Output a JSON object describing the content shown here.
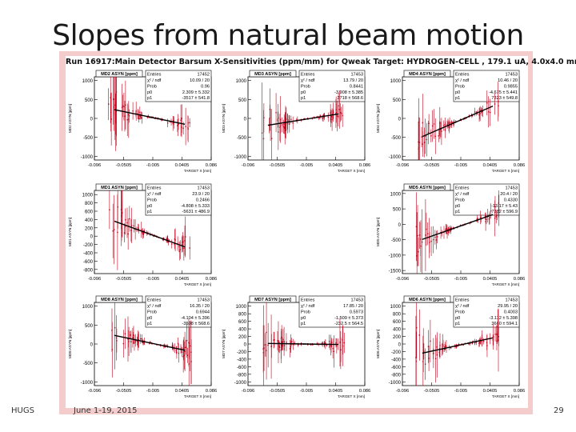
{
  "slide": {
    "title": "Slopes from natural beam motion",
    "footer_left": "HUGS",
    "footer_date": "June 1-19, 2015",
    "page_number": "29"
  },
  "run_title": "Run 16917:Main Detector Barsum X-Sensitivities (ppm/mm) for Qweak Target: HYDROGEN-CELL , 179.1 uA, 4.0x4.0 mm",
  "colors": {
    "frame": "#f4cccc",
    "points": "#c0001a",
    "fit": "#000000",
    "axis": "#000000"
  },
  "chart_data": [
    {
      "type": "scatter",
      "panel": "MD2 ASYN [ppm]",
      "ylabel": "MD2 ASYN [ppm]",
      "xlabel": "TARGET X [mm]",
      "xticks": [
        "-0.096",
        "-0.0505",
        "-0.005",
        "0.0405",
        "0.086"
      ],
      "yticks": [
        "1000",
        "500",
        "0",
        "-500",
        "-1000"
      ],
      "xlim": [
        -0.096,
        0.086
      ],
      "ylim": [
        -1100,
        1100
      ],
      "stats": [
        {
          "k": "Entries",
          "v": "17452"
        },
        {
          "k": "χ² / ndf",
          "v": "10.09 / 20"
        },
        {
          "k": "Prob",
          "v": "0.96"
        },
        {
          "k": "p0",
          "v": "2.309 ± 5.332"
        },
        {
          "k": "p1",
          "v": "-3517 ± 541.8"
        }
      ],
      "fit": {
        "p0": 2.3,
        "p1": -3517
      },
      "seed": 11
    },
    {
      "type": "scatter",
      "panel": "MD3 ASYN [ppm]",
      "ylabel": "MD3 ASYN [ppm]",
      "xlabel": "TARGET X [mm]",
      "xticks": [
        "-0.096",
        "-0.0505",
        "-0.005",
        "0.0405",
        "0.086"
      ],
      "yticks": [
        "1000",
        "500",
        "0",
        "-500",
        "-1000"
      ],
      "xlim": [
        -0.096,
        0.086
      ],
      "ylim": [
        -1100,
        1100
      ],
      "stats": [
        {
          "k": "Entries",
          "v": "17453"
        },
        {
          "k": "χ² / ndf",
          "v": "13.79 / 20"
        },
        {
          "k": "Prob",
          "v": "0.8441"
        },
        {
          "k": "p0",
          "v": "-3.908 ± 5.385"
        },
        {
          "k": "p1",
          "v": "2718 ± 568.6"
        }
      ],
      "fit": {
        "p0": -3.9,
        "p1": 2718
      },
      "seed": 23
    },
    {
      "type": "scatter",
      "panel": "MD4 ASYN [ppm]",
      "ylabel": "MD4 ASYN [ppm]",
      "xlabel": "TARGET X [mm]",
      "xticks": [
        "-0.096",
        "-0.0505",
        "-0.005",
        "0.0405",
        "0.086"
      ],
      "yticks": [
        "1000",
        "500",
        "0",
        "-500",
        "-1000"
      ],
      "xlim": [
        -0.096,
        0.086
      ],
      "ylim": [
        -1100,
        1100
      ],
      "stats": [
        {
          "k": "Entries",
          "v": "17453"
        },
        {
          "k": "χ² / ndf",
          "v": "10.46 / 20"
        },
        {
          "k": "Prob",
          "v": "0.9855"
        },
        {
          "k": "p0",
          "v": "-4.675 ± 5.441"
        },
        {
          "k": "p1",
          "v": "7323 ± 549.8"
        }
      ],
      "fit": {
        "p0": -4.7,
        "p1": 7323
      },
      "seed": 37
    },
    {
      "type": "scatter",
      "panel": "MD1 ASYN [ppm]",
      "ylabel": "MD1 ASYN [ppm]",
      "xlabel": "TARGET X [mm]",
      "xticks": [
        "-0.096",
        "-0.0505",
        "-0.005",
        "0.0405",
        "0.086"
      ],
      "yticks": [
        "1000",
        "800",
        "600",
        "400",
        "200",
        "0",
        "-200",
        "-400",
        "-600",
        "-800"
      ],
      "xlim": [
        -0.096,
        0.086
      ],
      "ylim": [
        -900,
        1100
      ],
      "stats": [
        {
          "k": "Entries",
          "v": "17453"
        },
        {
          "k": "χ² / ndf",
          "v": "23.9 / 20"
        },
        {
          "k": "Prob",
          "v": "0.2466"
        },
        {
          "k": "p0",
          "v": "-4.808 ± 5.333"
        },
        {
          "k": "p1",
          "v": "-5631 ± 486.9"
        }
      ],
      "fit": {
        "p0": -4.8,
        "p1": -5631
      },
      "seed": 41
    },
    {
      "type": "scatter",
      "panel": "MD5 ASYN [ppm]",
      "ylabel": "MD5 ASYN [ppm]",
      "xlabel": "TARGET X [mm]",
      "xticks": [
        "-0.096",
        "-0.0505",
        "-0.005",
        "0.0405",
        "0.086"
      ],
      "yticks": [
        "1000",
        "500",
        "0",
        "-500",
        "-1000",
        "-1500"
      ],
      "xlim": [
        -0.096,
        0.086
      ],
      "ylim": [
        -1600,
        1100
      ],
      "stats": [
        {
          "k": "Entries",
          "v": "17453"
        },
        {
          "k": "χ² / ndf",
          "v": "20.4 / 20"
        },
        {
          "k": "Prob",
          "v": "0.4330"
        },
        {
          "k": "p0",
          "v": "-13.17 ± 5.43"
        },
        {
          "k": "p1",
          "v": "7332 ± 596.9"
        }
      ],
      "fit": {
        "p0": -13.2,
        "p1": 7332
      },
      "seed": 53
    },
    {
      "type": "scatter",
      "panel": "MD8 ASYN [ppm]",
      "ylabel": "MD8 ASYN [ppm]",
      "xlabel": "TARGET X [mm]",
      "xticks": [
        "-0.096",
        "-0.0505",
        "-0.005",
        "0.0405",
        "0.086"
      ],
      "yticks": [
        "1000",
        "500",
        "0",
        "-500",
        "-1000"
      ],
      "xlim": [
        -0.096,
        0.086
      ],
      "ylim": [
        -1100,
        1100
      ],
      "stats": [
        {
          "k": "Entries",
          "v": "17453"
        },
        {
          "k": "χ² / ndf",
          "v": "16.35 / 20"
        },
        {
          "k": "Prob",
          "v": "0.6944"
        },
        {
          "k": "p0",
          "v": "-4.104 ± 5.396"
        },
        {
          "k": "p1",
          "v": "-3598 ± 568.6"
        }
      ],
      "fit": {
        "p0": -4.1,
        "p1": -3598
      },
      "seed": 61
    },
    {
      "type": "scatter",
      "panel": "MD7 ASYN [ppm]",
      "ylabel": "MD7 ASYN [ppm]",
      "xlabel": "TARGET X [mm]",
      "xticks": [
        "-0.096",
        "-0.0505",
        "-0.005",
        "0.0405",
        "0.086"
      ],
      "yticks": [
        "1000",
        "800",
        "600",
        "400",
        "200",
        "0",
        "-200",
        "-400",
        "-600",
        "-800",
        "-1000"
      ],
      "xlim": [
        -0.096,
        0.086
      ],
      "ylim": [
        -1100,
        1100
      ],
      "stats": [
        {
          "k": "Entries",
          "v": "17453"
        },
        {
          "k": "χ² / ndf",
          "v": "17.85 / 20"
        },
        {
          "k": "Prob",
          "v": "0.5973"
        },
        {
          "k": "p0",
          "v": "-1.509 ± 5.373"
        },
        {
          "k": "p1",
          "v": "-232.5 ± 564.5"
        }
      ],
      "fit": {
        "p0": -1.5,
        "p1": -232.5
      },
      "seed": 71
    },
    {
      "type": "scatter",
      "panel": "MD6 ASYN [ppm]",
      "ylabel": "MD6 ASYN [ppm]",
      "xlabel": "TARGET X [mm]",
      "xticks": [
        "-0.096",
        "-0.0505",
        "-0.005",
        "0.0405",
        "0.086"
      ],
      "yticks": [
        "1000",
        "800",
        "600",
        "400",
        "200",
        "0",
        "-200",
        "-400",
        "-600",
        "-800",
        "-1000"
      ],
      "xlim": [
        -0.096,
        0.086
      ],
      "ylim": [
        -1100,
        1100
      ],
      "stats": [
        {
          "k": "Entries",
          "v": "17453"
        },
        {
          "k": "χ² / ndf",
          "v": "29.95 / 20"
        },
        {
          "k": "Prob",
          "v": "0.4003"
        },
        {
          "k": "p0",
          "v": "-3.112 ± 5.398"
        },
        {
          "k": "p1",
          "v": "3660 ± 594.1"
        }
      ],
      "fit": {
        "p0": -3.1,
        "p1": 3660
      },
      "seed": 83
    }
  ]
}
